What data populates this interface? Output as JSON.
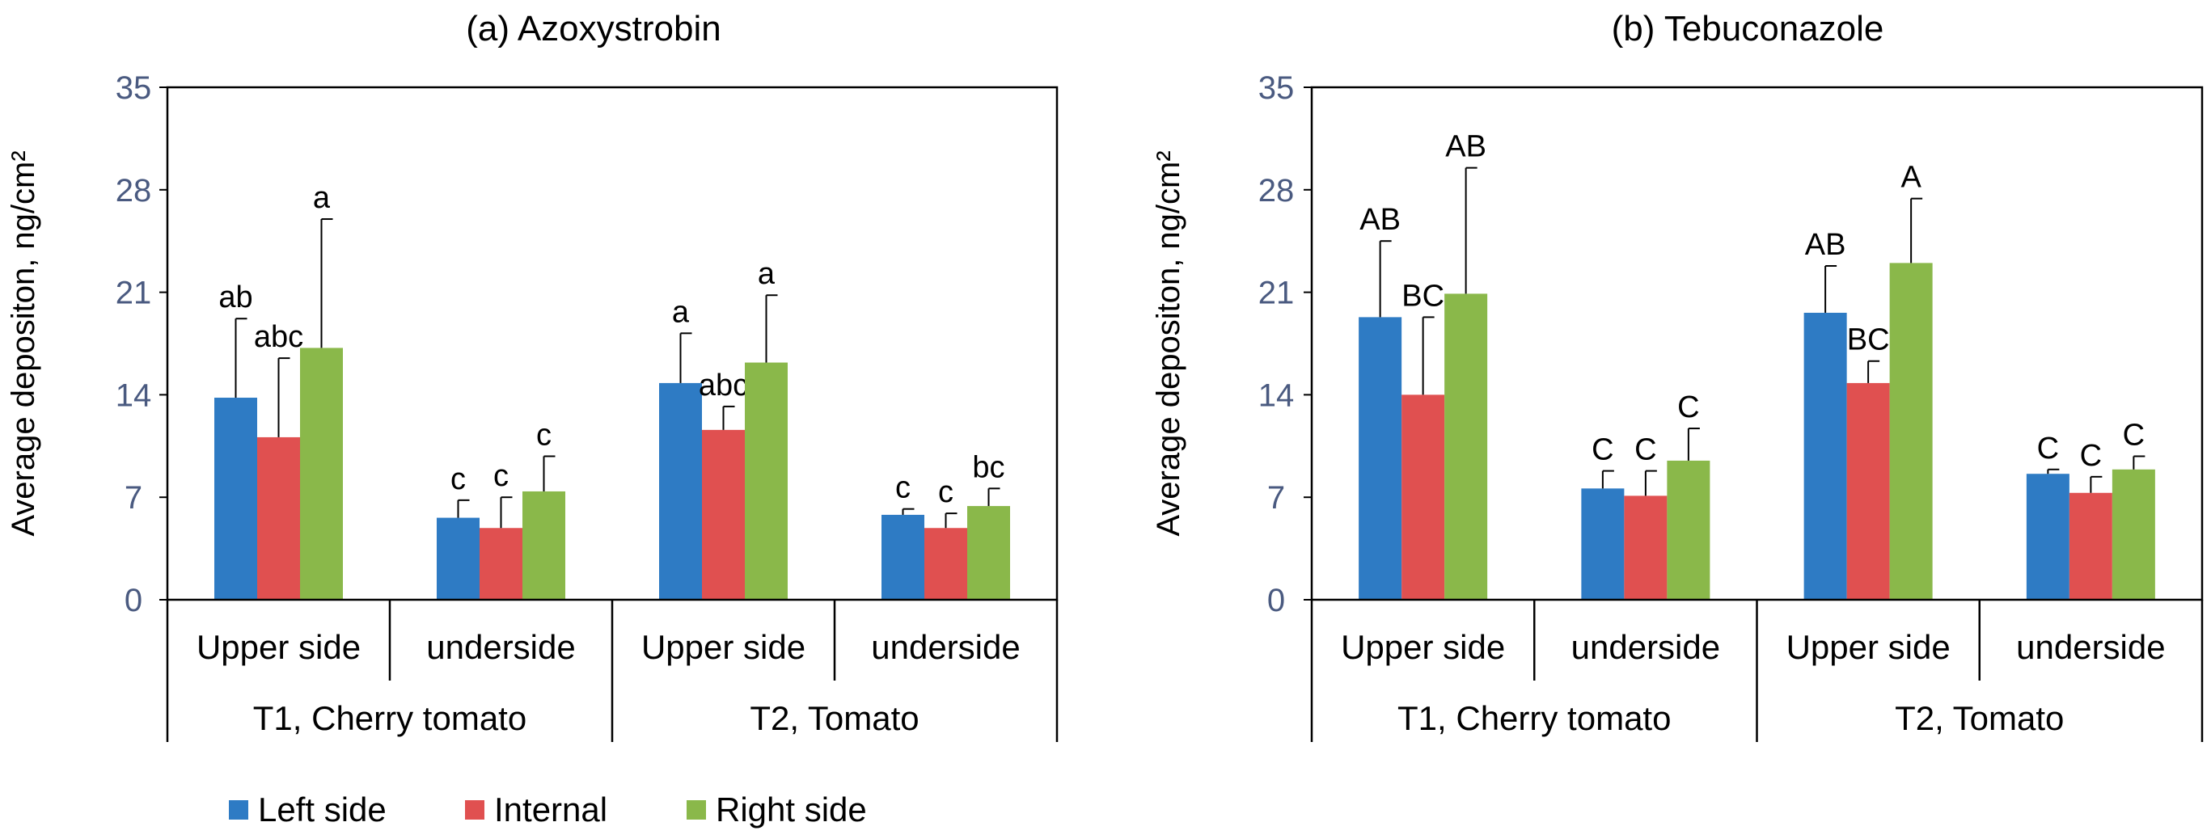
{
  "chart_data": [
    {
      "type": "bar",
      "title": "(a) Azoxystrobin",
      "ylabel": "Average depositon, ng/cm²",
      "ylim": [
        0,
        35
      ],
      "yticks": [
        0,
        7,
        14,
        21,
        28,
        35
      ],
      "categories": [
        "Upper side",
        "underside",
        "Upper side",
        "underside"
      ],
      "groups": [
        "T1, Cherry tomato",
        "T2, Tomato"
      ],
      "series": [
        {
          "name": "Left side",
          "values": [
            13.8,
            5.6,
            14.8,
            5.8
          ],
          "errors": [
            5.4,
            1.2,
            3.4,
            0.4
          ],
          "letters": [
            "ab",
            "c",
            "a",
            "c"
          ]
        },
        {
          "name": "Internal",
          "values": [
            11.1,
            4.9,
            11.6,
            4.9
          ],
          "errors": [
            5.4,
            2.1,
            1.6,
            1.0
          ],
          "letters": [
            "abc",
            "c",
            "abc",
            "c"
          ]
        },
        {
          "name": "Right side",
          "values": [
            17.2,
            7.4,
            16.2,
            6.4
          ],
          "errors": [
            8.8,
            2.4,
            4.6,
            1.2
          ],
          "letters": [
            "a",
            "c",
            "a",
            "bc"
          ]
        }
      ]
    },
    {
      "type": "bar",
      "title": "(b) Tebuconazole",
      "ylabel": "Average depositon, ng/cm²",
      "ylim": [
        0,
        35
      ],
      "yticks": [
        0,
        7,
        14,
        21,
        28,
        35
      ],
      "categories": [
        "Upper side",
        "underside",
        "Upper side",
        "underside"
      ],
      "groups": [
        "T1, Cherry tomato",
        "T2, Tomato"
      ],
      "series": [
        {
          "name": "Left side",
          "values": [
            19.3,
            7.6,
            19.6,
            8.6
          ],
          "errors": [
            5.2,
            1.2,
            3.2,
            0.3
          ],
          "letters": [
            "AB",
            "C",
            "AB",
            "C"
          ]
        },
        {
          "name": "Internal",
          "values": [
            14.0,
            7.1,
            14.8,
            7.3
          ],
          "errors": [
            5.3,
            1.7,
            1.5,
            1.1
          ],
          "letters": [
            "BC",
            "C",
            "BC",
            "C"
          ]
        },
        {
          "name": "Right side",
          "values": [
            20.9,
            9.5,
            23.0,
            8.9
          ],
          "errors": [
            8.6,
            2.2,
            4.4,
            0.9
          ],
          "letters": [
            "AB",
            "C",
            "A",
            "C"
          ]
        }
      ]
    }
  ],
  "legend": [
    {
      "name": "Left side",
      "color": "#2e7bc4"
    },
    {
      "name": "Internal",
      "color": "#e05050"
    },
    {
      "name": "Right side",
      "color": "#8ab84a"
    }
  ]
}
